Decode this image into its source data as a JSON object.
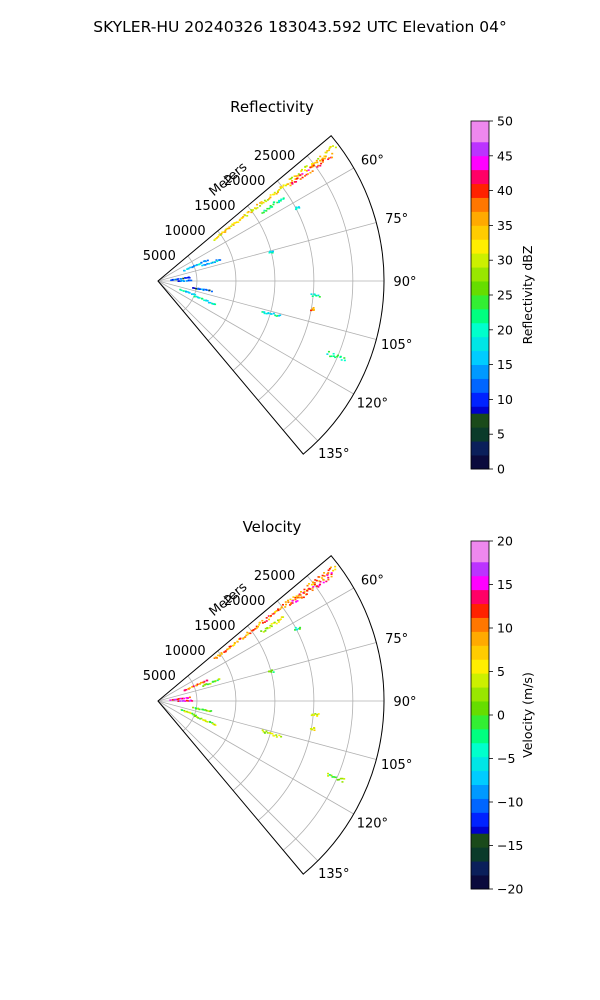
{
  "suptitle": "SKYLER-HU  20240326  183043.592 UTC Elevation 04°",
  "chart_data": [
    {
      "type": "polar-scatter",
      "title": "Reflectivity",
      "radial_label": "Meters",
      "radial_ticks": [
        5000,
        10000,
        15000,
        20000,
        25000
      ],
      "radial_max": 29000,
      "azimuth_ticks": [
        "60°",
        "75°",
        "90°",
        "105°",
        "120°",
        "135°"
      ],
      "azimuth_range": [
        50,
        140
      ],
      "grid": true,
      "colorbar": {
        "label": "Reflectivity dBZ",
        "min": 0,
        "max": 50,
        "ticks": [
          "0",
          "5",
          "10",
          "15",
          "20",
          "25",
          "30",
          "35",
          "40",
          "45",
          "50"
        ]
      },
      "features": [
        {
          "az": 52.5,
          "r0": 9000,
          "r1": 28600,
          "value": 33
        },
        {
          "az": 53.6,
          "r0": 21000,
          "r1": 27800,
          "value": 40
        },
        {
          "az": 56,
          "r0": 16000,
          "r1": 19500,
          "value": 22
        },
        {
          "az": 62,
          "r0": 19800,
          "r1": 20500,
          "value": 20
        },
        {
          "az": 70,
          "r0": 6000,
          "r1": 8500,
          "value": 16
        },
        {
          "az": 75,
          "r0": 14600,
          "r1": 15200,
          "value": 20
        },
        {
          "az": 66,
          "r0": 3500,
          "r1": 7000,
          "value": 16
        },
        {
          "az": 82,
          "r0": 1500,
          "r1": 4200,
          "value": 11
        },
        {
          "az": 88,
          "r0": 2400,
          "r1": 4400,
          "value": 13
        },
        {
          "az": 95,
          "r0": 19600,
          "r1": 20800,
          "value": 20
        },
        {
          "az": 100,
          "r0": 19900,
          "r1": 20300,
          "value": 36
        },
        {
          "az": 110,
          "r0": 3000,
          "r1": 5200,
          "value": 18
        },
        {
          "az": 112,
          "r0": 5000,
          "r1": 8000,
          "value": 20
        },
        {
          "az": 106,
          "r0": 13800,
          "r1": 16400,
          "value": 20
        },
        {
          "az": 113,
          "r0": 23500,
          "r1": 26000,
          "value": 22
        },
        {
          "az": 100,
          "r0": 4500,
          "r1": 7000,
          "value": 12
        }
      ]
    },
    {
      "type": "polar-scatter",
      "title": "Velocity",
      "radial_label": "Meters",
      "radial_ticks": [
        5000,
        10000,
        15000,
        20000,
        25000
      ],
      "radial_max": 29000,
      "azimuth_ticks": [
        "60°",
        "75°",
        "90°",
        "105°",
        "120°",
        "135°"
      ],
      "azimuth_range": [
        50,
        140
      ],
      "grid": true,
      "colorbar": {
        "label": "Velocity (m/s)",
        "min": -20,
        "max": 20,
        "ticks": [
          "−20",
          "−15",
          "−10",
          "−5",
          "0",
          "5",
          "10",
          "15",
          "20"
        ]
      },
      "features": [
        {
          "az": 52.5,
          "r0": 9000,
          "r1": 28600,
          "value": 10
        },
        {
          "az": 53.6,
          "r0": 21000,
          "r1": 27800,
          "value": 12
        },
        {
          "az": 56,
          "r0": 16000,
          "r1": 19500,
          "value": 5
        },
        {
          "az": 62,
          "r0": 19800,
          "r1": 20500,
          "value": -2
        },
        {
          "az": 70,
          "r0": 6000,
          "r1": 8500,
          "value": 2
        },
        {
          "az": 75,
          "r0": 14600,
          "r1": 15200,
          "value": 0
        },
        {
          "az": 66,
          "r0": 3500,
          "r1": 7000,
          "value": 11
        },
        {
          "az": 82,
          "r0": 1500,
          "r1": 4200,
          "value": 14
        },
        {
          "az": 88,
          "r0": 2400,
          "r1": 4400,
          "value": 15
        },
        {
          "az": 95,
          "r0": 19600,
          "r1": 20800,
          "value": 3
        },
        {
          "az": 100,
          "r0": 19900,
          "r1": 20300,
          "value": 4
        },
        {
          "az": 110,
          "r0": 3000,
          "r1": 5200,
          "value": 2
        },
        {
          "az": 112,
          "r0": 5000,
          "r1": 8000,
          "value": 3
        },
        {
          "az": 106,
          "r0": 13800,
          "r1": 16400,
          "value": 4
        },
        {
          "az": 113,
          "r0": 23500,
          "r1": 26000,
          "value": 1
        },
        {
          "az": 100,
          "r0": 4500,
          "r1": 7000,
          "value": 2
        }
      ]
    }
  ]
}
